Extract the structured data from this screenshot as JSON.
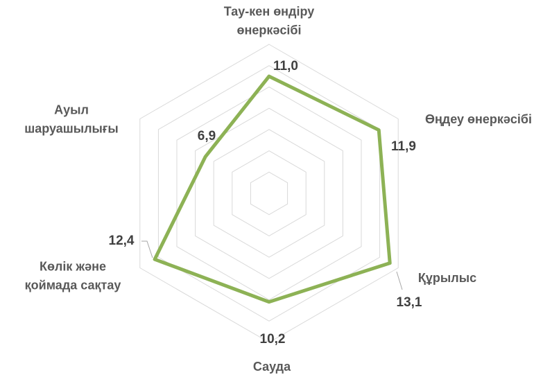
{
  "chart_data": {
    "type": "radar",
    "categories": [
      "Тау-кен өндіру\nөнеркәсібі",
      "Өңдеу өнеркәсібі",
      "Құрылыс",
      "Сауда",
      "Көлік және\nқоймада сақтау",
      "Ауыл\nшаруашылығы"
    ],
    "values": [
      11.0,
      11.9,
      13.1,
      10.2,
      12.4,
      6.9
    ],
    "value_labels": [
      "11,0",
      "11,9",
      "13,1",
      "10,2",
      "12,4",
      "6,9"
    ],
    "color": "#8db255",
    "ylim": [
      0,
      14
    ],
    "yticks": [
      0,
      2,
      4,
      6,
      8,
      10,
      12,
      14
    ],
    "grid": true
  }
}
